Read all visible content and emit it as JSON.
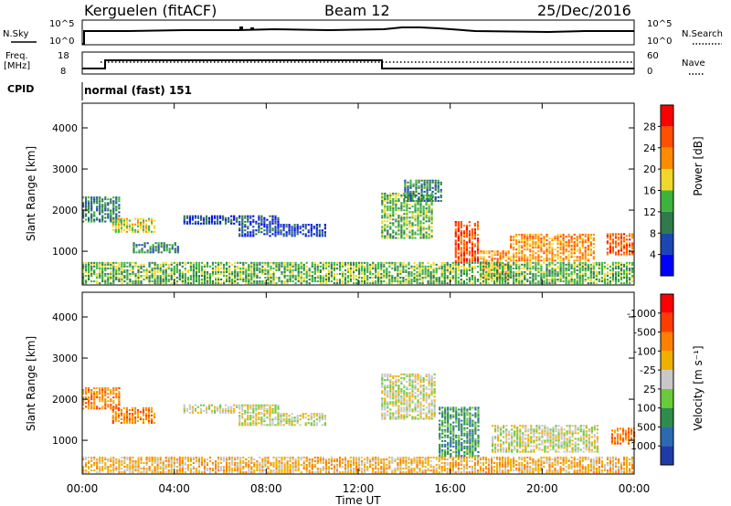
{
  "header": {
    "station": "Kerguelen (fitACF)",
    "beam": "Beam 12",
    "date": "25/Dec/2016"
  },
  "noise_panel": {
    "left_label": "N.Sky",
    "right_label": "N.Search",
    "tick_top": "10^5",
    "tick_bottom": "10^0"
  },
  "freq_panel": {
    "left_label_1": "Freq.",
    "left_label_2": "[MHz]",
    "right_label": "Nave",
    "tick_top_left": "18",
    "tick_bottom_left": "8",
    "tick_top_right": "60",
    "tick_bottom_right": "0"
  },
  "cpid": {
    "label": "CPID",
    "value": "normal (fast) 151"
  },
  "chart_data": [
    {
      "type": "heatmap",
      "title": "",
      "xlabel": "",
      "ylabel": "Slant Range [km]",
      "x_ticks": [
        "00:00",
        "04:00",
        "08:00",
        "12:00",
        "16:00",
        "20:00",
        "00:00"
      ],
      "y_ticks": [
        1000,
        2000,
        3000,
        4000
      ],
      "ylim": [
        180,
        4600
      ],
      "colorbar": {
        "label": "Power [dB]",
        "ticks": [
          "4",
          "8",
          "12",
          "16",
          "20",
          "24",
          "28"
        ],
        "colors": [
          "#0000ff",
          "#1a48b0",
          "#2f7a4c",
          "#3cb43c",
          "#f0d82a",
          "#ff8c00",
          "#ff5000",
          "#ff0000"
        ]
      },
      "regions": [
        {
          "t0": 0.0,
          "t1": 1.6,
          "r0": 1700,
          "r1": 2300,
          "level": 2
        },
        {
          "t0": 1.3,
          "t1": 3.2,
          "r0": 1450,
          "r1": 1800,
          "level": 4
        },
        {
          "t0": 2.2,
          "t1": 4.2,
          "r0": 950,
          "r1": 1200,
          "level": 2
        },
        {
          "t0": 4.4,
          "t1": 8.6,
          "r0": 1650,
          "r1": 1850,
          "level": 1
        },
        {
          "t0": 6.8,
          "t1": 10.6,
          "r0": 1350,
          "r1": 1650,
          "level": 1
        },
        {
          "t0": 13.0,
          "t1": 15.2,
          "r0": 1300,
          "r1": 2400,
          "level": 3
        },
        {
          "t0": 14.0,
          "t1": 15.6,
          "r0": 2200,
          "r1": 2700,
          "level": 2
        },
        {
          "t0": 16.2,
          "t1": 17.2,
          "r0": 700,
          "r1": 1700,
          "level": 6
        },
        {
          "t0": 17.3,
          "t1": 18.6,
          "r0": 300,
          "r1": 1000,
          "level": 5
        },
        {
          "t0": 18.6,
          "t1": 22.3,
          "r0": 750,
          "r1": 1400,
          "level": 5
        },
        {
          "t0": 22.8,
          "t1": 24.0,
          "r0": 900,
          "r1": 1400,
          "level": 6
        },
        {
          "t0": 0.0,
          "t1": 24.0,
          "r0": 200,
          "r1": 700,
          "level": 3
        }
      ]
    },
    {
      "type": "heatmap",
      "title": "",
      "xlabel": "Time UT",
      "ylabel": "Slant Range [km]",
      "x_ticks": [
        "00:00",
        "04:00",
        "08:00",
        "12:00",
        "16:00",
        "20:00",
        "00:00"
      ],
      "y_ticks": [
        1000,
        2000,
        3000,
        4000
      ],
      "ylim": [
        180,
        4600
      ],
      "colorbar": {
        "label": "Velocity [m s⁻¹]",
        "ticks": [
          "1000",
          "500",
          "100",
          "25",
          "-25",
          "-100",
          "-500",
          "-1000"
        ],
        "colors": [
          "#1e3ca8",
          "#2c6ab0",
          "#2e8c4c",
          "#6acb3a",
          "#c8c8c8",
          "#f0b000",
          "#ff8000",
          "#ff3c00",
          "#ff0000"
        ]
      },
      "regions": [
        {
          "t0": 0.0,
          "t1": 1.6,
          "r0": 1750,
          "r1": 2250,
          "level": 6
        },
        {
          "t0": 1.3,
          "t1": 3.2,
          "r0": 1400,
          "r1": 1800,
          "level": 6
        },
        {
          "t0": 4.4,
          "t1": 8.6,
          "r0": 1650,
          "r1": 1850,
          "level": 4
        },
        {
          "t0": 6.8,
          "t1": 10.6,
          "r0": 1350,
          "r1": 1650,
          "level": 4
        },
        {
          "t0": 13.0,
          "t1": 15.3,
          "r0": 1500,
          "r1": 2600,
          "level": 4
        },
        {
          "t0": 15.5,
          "t1": 17.3,
          "r0": 600,
          "r1": 1800,
          "level": 2
        },
        {
          "t0": 17.8,
          "t1": 22.4,
          "r0": 700,
          "r1": 1350,
          "level": 4
        },
        {
          "t0": 23.0,
          "t1": 24.0,
          "r0": 900,
          "r1": 1300,
          "level": 6
        },
        {
          "t0": 0.0,
          "t1": 24.0,
          "r0": 200,
          "r1": 600,
          "level": 5
        }
      ]
    }
  ]
}
